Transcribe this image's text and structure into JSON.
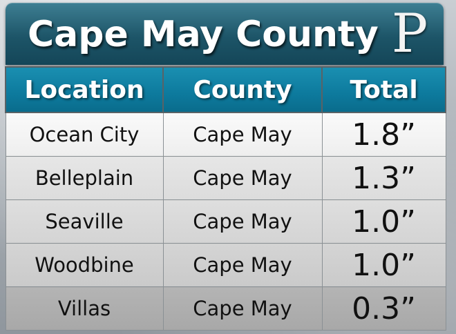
{
  "header": {
    "title": "Cape May County",
    "logo_letter": "P"
  },
  "table": {
    "columns": [
      "Location",
      "County",
      "Total"
    ],
    "rows": [
      {
        "location": "Ocean City",
        "county": "Cape May",
        "total": "1.8”"
      },
      {
        "location": "Belleplain",
        "county": "Cape May",
        "total": "1.3”"
      },
      {
        "location": "Seaville",
        "county": "Cape May",
        "total": "1.0”"
      },
      {
        "location": "Woodbine",
        "county": "Cape May",
        "total": "1.0”"
      },
      {
        "location": "Villas",
        "county": "Cape May",
        "total": "0.3”"
      }
    ]
  },
  "colors": {
    "title_bar": "#1d5568",
    "header_row": "#0d7a9d",
    "text": "#111111"
  }
}
